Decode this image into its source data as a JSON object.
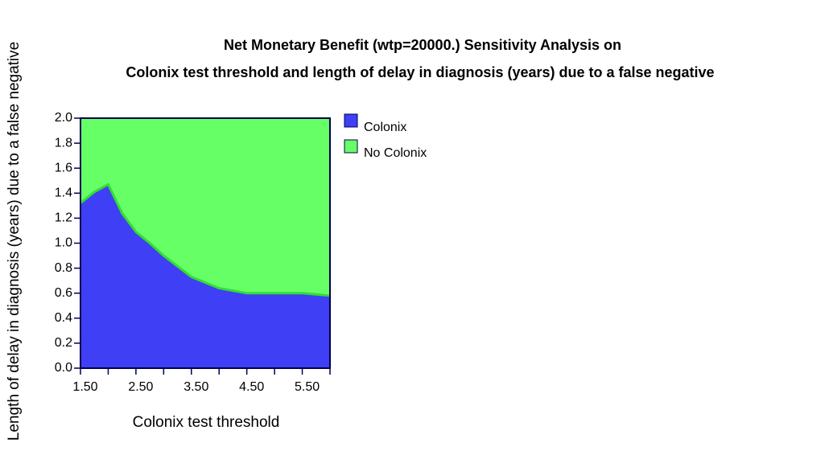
{
  "chart_data": {
    "type": "region",
    "title": "Net Monetary Benefit (wtp=20000.) Sensitivity Analysis on",
    "subtitle": "Colonix test threshold and length of delay in diagnosis (years) due to a false negative",
    "x_label": "Colonix test threshold",
    "y_label": "Length of delay in diagnosis (years) due to a false negative",
    "x": [
      1.5,
      1.75,
      2.0,
      2.25,
      2.5,
      2.75,
      3.0,
      3.5,
      4.0,
      4.5,
      5.0,
      5.5,
      6.0
    ],
    "boundary": [
      1.32,
      1.41,
      1.47,
      1.24,
      1.09,
      1.0,
      0.9,
      0.73,
      0.64,
      0.6,
      0.6,
      0.6,
      0.58
    ],
    "boundary_color": "#33dd33",
    "series": [
      {
        "name": "Colonix",
        "color": "#3f3ff5",
        "fill": "below"
      },
      {
        "name": "No Colonix",
        "color": "#66ff66",
        "fill": "above"
      }
    ],
    "xlim": [
      1.5,
      6.0
    ],
    "xticks": [
      {
        "value": 1.5,
        "label": "1.50"
      },
      {
        "value": 2.5,
        "label": "2.50"
      },
      {
        "value": 3.5,
        "label": "3.50"
      },
      {
        "value": 4.5,
        "label": "4.50"
      },
      {
        "value": 5.5,
        "label": "5.50"
      }
    ],
    "xminor_ticks": [
      2,
      3,
      4,
      5,
      6
    ],
    "ylim": [
      0,
      2
    ],
    "yticks": [
      {
        "value": 0,
        "label": "0.0"
      },
      0.2,
      0.4,
      0.6,
      0.8,
      {
        "value": 1,
        "label": "1.0"
      },
      1.2,
      1.4,
      1.6,
      1.8,
      {
        "value": 2,
        "label": "2.0"
      }
    ],
    "axis_color": "#000050"
  }
}
